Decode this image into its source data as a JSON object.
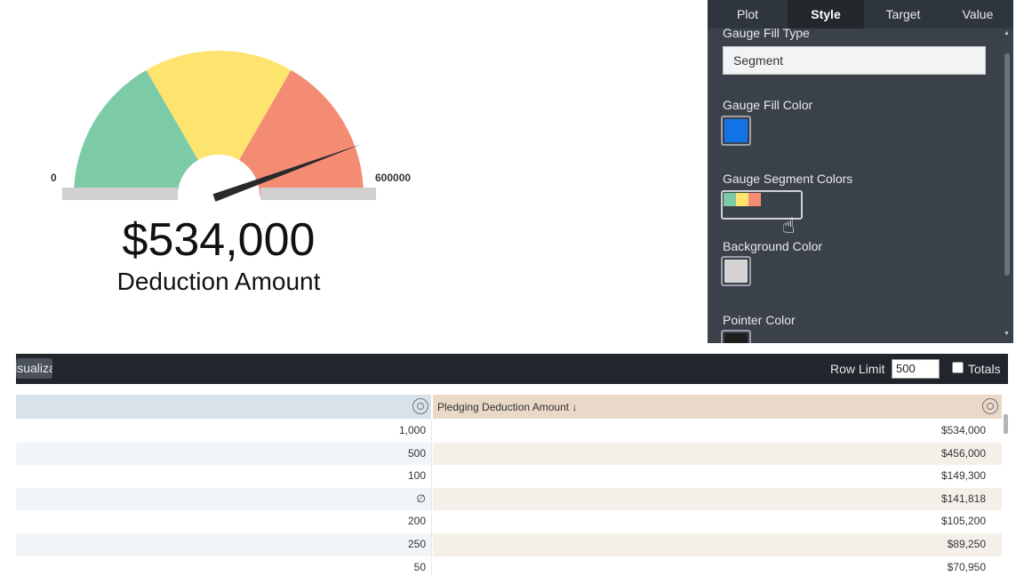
{
  "gauge": {
    "min_label": "0",
    "max_label": "600000",
    "min": 0,
    "max": 600000,
    "value": 534000,
    "value_text": "$534,000",
    "label": "Deduction Amount",
    "segment_colors": [
      "#7ccaa6",
      "#fde46e",
      "#f48c74"
    ],
    "needle_color": "#2a2a2a",
    "track_color": "#d0d0d0"
  },
  "panel": {
    "tabs": [
      "Plot",
      "Style",
      "Target",
      "Value"
    ],
    "active_tab": "Style",
    "fill_type_label": "Gauge Fill Type",
    "fill_type_value": "Segment",
    "fill_color_label": "Gauge Fill Color",
    "fill_color": "#1273e6",
    "segment_colors_label": "Gauge Segment Colors",
    "background_color_label": "Background Color",
    "background_color": "#d4d4d4",
    "pointer_color_label": "Pointer Color",
    "pointer_color": "#1f1f1f"
  },
  "toolbar": {
    "button_label": "Visualization",
    "row_limit_label": "Row Limit",
    "row_limit_value": "500",
    "totals_label": "Totals"
  },
  "table": {
    "col2_header": "Pledging Deduction Amount ↓",
    "rows": [
      {
        "c1": "1,000",
        "c2": "$534,000"
      },
      {
        "c1": "500",
        "c2": "$456,000"
      },
      {
        "c1": "100",
        "c2": "$149,300"
      },
      {
        "c1": "∅",
        "c2": "$141,818"
      },
      {
        "c1": "200",
        "c2": "$105,200"
      },
      {
        "c1": "250",
        "c2": "$89,250"
      },
      {
        "c1": "50",
        "c2": "$70,950"
      }
    ]
  }
}
